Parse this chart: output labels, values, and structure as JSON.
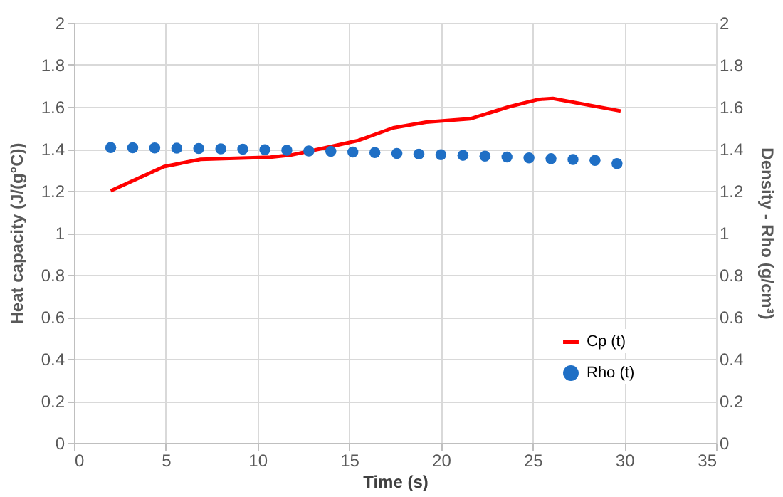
{
  "chart_data": {
    "type": "line",
    "xlabel": "Time (s)",
    "ylabel": "Heat capacity (J/(g°C))",
    "y2label": "Density - Rho (g/cm³)",
    "xlim": [
      0,
      35
    ],
    "xticks": [
      0,
      5,
      10,
      15,
      20,
      25,
      30,
      35
    ],
    "ylim": [
      0,
      2
    ],
    "yticks": [
      0,
      0.2,
      0.4,
      0.6,
      0.8,
      1,
      1.2,
      1.4,
      1.6,
      1.8,
      2
    ],
    "y2lim": [
      0,
      2
    ],
    "y2ticks": [
      0,
      0.2,
      0.4,
      0.6,
      0.8,
      1,
      1.2,
      1.4,
      1.6,
      1.8,
      2
    ],
    "grid": true,
    "legend": "bottom right",
    "series": [
      {
        "name": "Cp (t)",
        "color": "#ff0000",
        "marker": "none",
        "line_style": "solid",
        "x": [
          2.0,
          4.9,
          6.9,
          10.7,
          11.8,
          13.7,
          15.5,
          17.4,
          19.2,
          21.6,
          23.7,
          25.3,
          26.1,
          29.8
        ],
        "values": [
          1.2,
          1.315,
          1.35,
          1.36,
          1.37,
          1.405,
          1.44,
          1.5,
          1.527,
          1.543,
          1.6,
          1.635,
          1.64,
          1.58
        ]
      },
      {
        "name": "Rho (t)",
        "type": "scatter",
        "axis": "y2",
        "color": "#1f6fc5",
        "marker": "circle",
        "x": [
          2.0,
          3.2,
          4.4,
          5.6,
          6.8,
          8.0,
          9.2,
          10.4,
          11.6,
          12.8,
          14.0,
          15.2,
          16.4,
          17.6,
          18.8,
          20.0,
          21.2,
          22.4,
          23.6,
          24.8,
          26.0,
          27.2,
          28.4,
          29.6
        ],
        "values": [
          1.406,
          1.405,
          1.404,
          1.403,
          1.402,
          1.4,
          1.398,
          1.396,
          1.393,
          1.39,
          1.388,
          1.385,
          1.382,
          1.378,
          1.375,
          1.372,
          1.369,
          1.365,
          1.361,
          1.357,
          1.353,
          1.349,
          1.345,
          1.33
        ]
      }
    ]
  }
}
